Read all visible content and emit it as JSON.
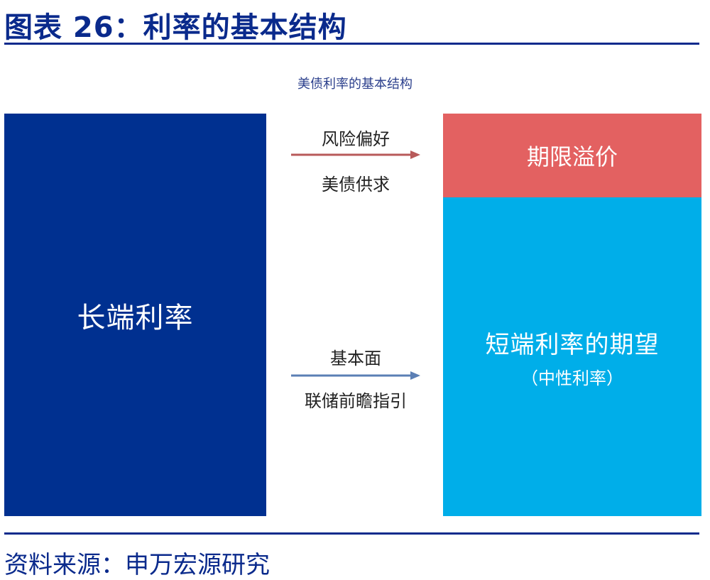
{
  "figure": {
    "title": "图表 26：利率的基本结构",
    "diagram_title": "美债利率的基本结构"
  },
  "left_box": {
    "label": "长端利率",
    "color": "#003090"
  },
  "right_top_box": {
    "label": "期限溢价",
    "color": "#e36161"
  },
  "right_bottom_box": {
    "label": "短端利率的期望",
    "sublabel": "（中性利率）",
    "color": "#00aee9"
  },
  "upper_arrow": {
    "label_above": "风险偏好",
    "label_below": "美债供求",
    "color": "#b85a5a"
  },
  "lower_arrow": {
    "label_above": "基本面",
    "label_below": "联储前瞻指引",
    "color": "#5b7fb5"
  },
  "footer": {
    "source": "资料来源：申万宏源研究"
  }
}
